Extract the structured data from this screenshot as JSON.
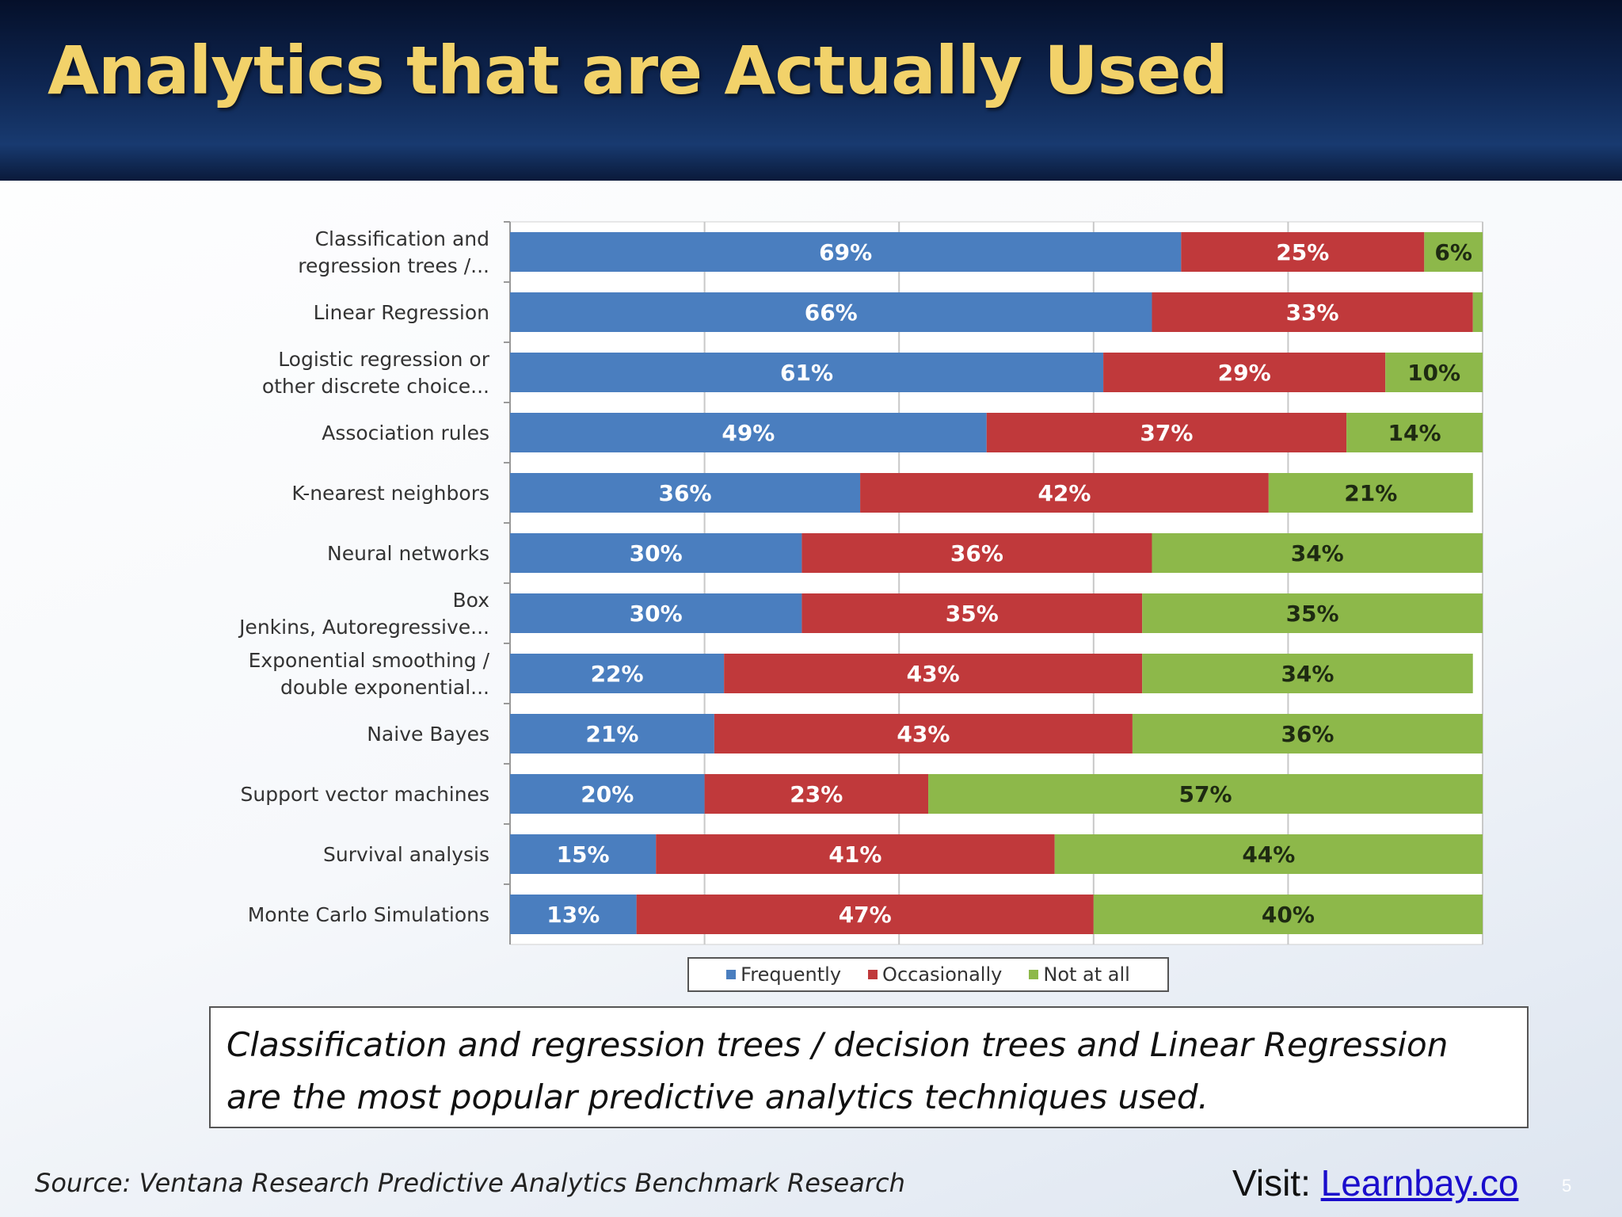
{
  "slide": {
    "title": "Analytics that are Actually Used",
    "callout": "Classification and regression trees / decision trees and Linear Regression are the most popular predictive analytics techniques used.",
    "source": "Source: Ventana Research Predictive Analytics Benchmark Research",
    "visit_label": "Visit:",
    "visit_link": "Learnbay.co",
    "page_number": "5"
  },
  "chart_data": {
    "type": "bar",
    "orientation": "horizontal",
    "stacked": true,
    "percent": true,
    "categories": [
      "Classification and\nregression trees /...",
      "Linear Regression",
      "Logistic regression or\nother discrete choice...",
      "Association rules",
      "K-nearest neighbors",
      "Neural networks",
      "Box\nJenkins, Autoregressive...",
      "Exponential smoothing /\ndouble exponential...",
      "Naive Bayes",
      "Support vector machines",
      "Survival analysis",
      "Monte Carlo Simulations"
    ],
    "series": [
      {
        "name": "Frequently",
        "color": "#4a7ebf",
        "values": [
          69,
          66,
          61,
          49,
          36,
          30,
          30,
          22,
          21,
          20,
          15,
          13
        ]
      },
      {
        "name": "Occasionally",
        "color": "#c0393b",
        "values": [
          25,
          33,
          29,
          37,
          42,
          36,
          35,
          43,
          43,
          23,
          41,
          47
        ]
      },
      {
        "name": "Not at all",
        "color": "#8db84a",
        "values": [
          6,
          1,
          10,
          14,
          21,
          34,
          35,
          34,
          36,
          57,
          44,
          40
        ]
      }
    ],
    "data_labels": [
      [
        "69%",
        "25%",
        "6%"
      ],
      [
        "66%",
        "33%",
        ""
      ],
      [
        "61%",
        "29%",
        "10%"
      ],
      [
        "49%",
        "37%",
        "14%"
      ],
      [
        "36%",
        "42%",
        "21%"
      ],
      [
        "30%",
        "36%",
        "34%"
      ],
      [
        "30%",
        "35%",
        "35%"
      ],
      [
        "22%",
        "43%",
        "34%"
      ],
      [
        "21%",
        "43%",
        "36%"
      ],
      [
        "20%",
        "23%",
        "57%"
      ],
      [
        "15%",
        "41%",
        "44%"
      ],
      [
        "13%",
        "47%",
        "40%"
      ]
    ],
    "xlim": [
      0,
      100
    ],
    "grid": true,
    "legend_position": "bottom"
  }
}
